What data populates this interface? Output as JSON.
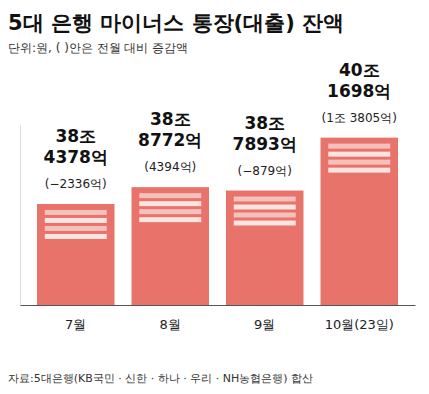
{
  "chart_data": {
    "type": "bar",
    "title": "5대 은행 마이너스 통장(대출) 잔액",
    "subtitle": "단위:원, ( )안은 전월 대비 증감액",
    "categories": [
      "7월",
      "8월",
      "9월",
      "10월(23일)"
    ],
    "values": [
      384378,
      388772,
      387893,
      401698
    ],
    "value_labels": [
      "38조 4378억",
      "38조 8772억",
      "38조 7893억",
      "40조 1698억"
    ],
    "changes": [
      -2336,
      4394,
      -879,
      13805
    ],
    "change_labels": [
      "(−2336억)",
      "(4394억)",
      "(−879억)",
      "(1조 3805억)"
    ],
    "color": "#e8736b",
    "ylim": [
      358000,
      405000
    ],
    "yticks": [],
    "data_labels": true,
    "tick_labels": "x",
    "source": "자료:5대은행(KB국민 · 신한 · 하나 · 우리 · NH농협은행) 합산"
  }
}
